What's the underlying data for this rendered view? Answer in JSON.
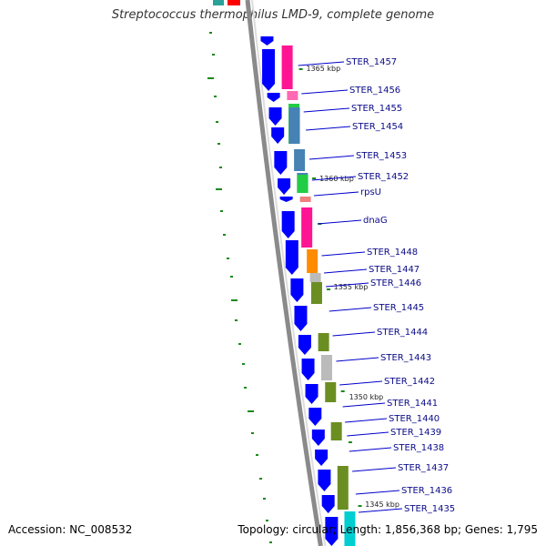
{
  "title": "Streptococcus thermophilus LMD-9, complete genome",
  "footer": {
    "accession": "Accession: NC_008532",
    "topology": "Topology: circular; Length: 1,856,368 bp; Genes: 1,795"
  },
  "colors": {
    "forward_cds": "#0000ff",
    "backbone": "#8a8a8a",
    "gc_skew": "#1a8a1a",
    "label_line": "#0000cc",
    "label_text": "#0b0b8a"
  },
  "tick_labels": [
    "1365 kbp",
    "1360 kbp",
    "1355 kbp",
    "1350 kbp",
    "1345 kbp"
  ],
  "gene_labels": [
    "STER_1457",
    "STER_1456",
    "STER_1455",
    "STER_1454",
    "STER_1453",
    "STER_1452",
    "rpsU",
    "dnaG",
    "STER_1448",
    "STER_1447",
    "STER_1446",
    "STER_1445",
    "STER_1444",
    "STER_1443",
    "STER_1442",
    "STER_1441",
    "STER_1440",
    "STER_1439",
    "STER_1438",
    "STER_1437",
    "STER_1436",
    "STER_1435"
  ],
  "cog_colors": {
    "magenta": "#ff1493",
    "pink": "#ff69b4",
    "green": "#22cc44",
    "steelblue": "#4682b4",
    "teal": "#2aa198",
    "salmon": "#f08080",
    "orange": "#ff8c00",
    "gray": "#bbbbbb",
    "olive": "#6b8e23",
    "cyan": "#00ced1",
    "red": "#ff0000",
    "lightgreen": "#90ee90",
    "blue": "#4169e1"
  }
}
